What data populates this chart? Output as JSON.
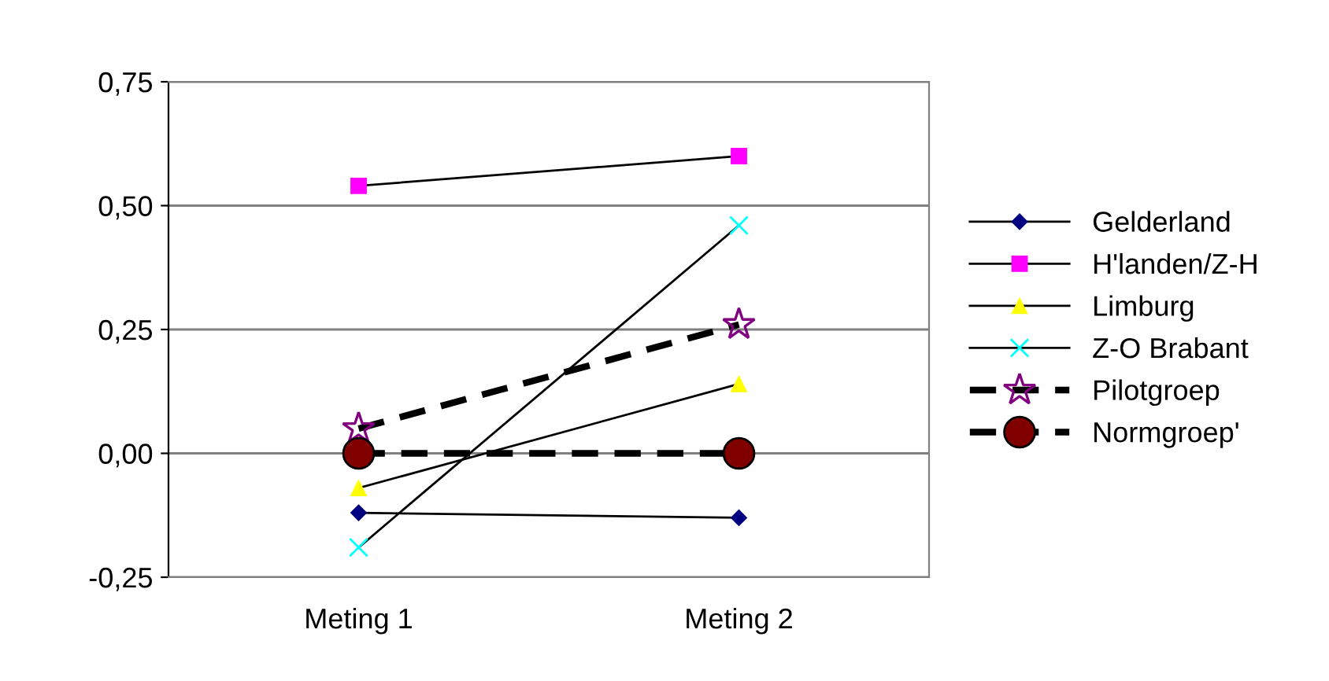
{
  "chart_data": {
    "type": "line",
    "categories": [
      "Meting 1",
      "Meting 2"
    ],
    "ylim": [
      -0.25,
      0.75
    ],
    "yticks": [
      {
        "value": -0.25,
        "label": "-0,25"
      },
      {
        "value": 0,
        "label": "0,00"
      },
      {
        "value": 0.25,
        "label": "0,25"
      },
      {
        "value": 0.5,
        "label": "0,50"
      },
      {
        "value": 0.75,
        "label": "0,75"
      }
    ],
    "grid": "y",
    "legend": "right",
    "series": [
      {
        "name": "Gelderland",
        "color": "#000080",
        "marker": "diamond",
        "line_style": "solid",
        "values": [
          -0.12,
          -0.13
        ]
      },
      {
        "name": "H'landen/Z-H",
        "color": "#ff00ff",
        "marker": "square",
        "line_style": "solid",
        "values": [
          0.54,
          0.6
        ]
      },
      {
        "name": "Limburg",
        "color": "#ffff00",
        "marker": "triangle",
        "line_style": "solid",
        "values": [
          -0.07,
          0.14
        ]
      },
      {
        "name": "Z-O Brabant",
        "color": "#00ffff",
        "marker": "cross",
        "line_style": "solid",
        "values": [
          -0.19,
          0.46
        ]
      },
      {
        "name": "Pilotgroep",
        "color": "#800080",
        "marker": "star",
        "line_style": "dashed",
        "values": [
          0.05,
          0.26
        ]
      },
      {
        "name": "Normgroep'",
        "color": "#800000",
        "marker": "circle",
        "line_style": "dashed",
        "values": [
          0,
          0
        ]
      }
    ]
  }
}
